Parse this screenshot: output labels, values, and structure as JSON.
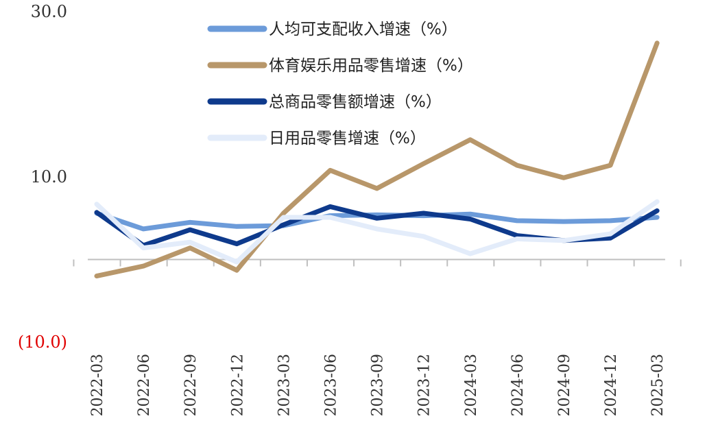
{
  "chart_data": {
    "type": "line",
    "categories": [
      "2022-03",
      "2022-06",
      "2022-09",
      "2022-12",
      "2023-03",
      "2023-06",
      "2023-09",
      "2023-12",
      "2024-03",
      "2024-06",
      "2024-09",
      "2024-12",
      "2025-03"
    ],
    "ylim": [
      -10,
      30
    ],
    "yticks": [
      {
        "value": 30,
        "label": "30.0"
      },
      {
        "value": 10,
        "label": "10.0"
      },
      {
        "value": -10,
        "label": "(10.0)"
      }
    ],
    "negative_label_color": "#e00000",
    "grid": false,
    "legend_position": "top-center",
    "series": [
      {
        "name": "人均可支配收入增速（%）",
        "color": "#6c9bd9",
        "values": [
          5.6,
          3.7,
          4.5,
          4.0,
          4.1,
          5.3,
          5.4,
          5.3,
          5.5,
          4.7,
          4.6,
          4.7,
          5.1
        ]
      },
      {
        "name": "体育娱乐用品零售增速（%）",
        "color": "#b8976a",
        "values": [
          -2.0,
          -0.8,
          1.4,
          -1.3,
          5.6,
          10.8,
          8.6,
          11.6,
          14.5,
          11.4,
          9.9,
          11.4,
          26.2
        ]
      },
      {
        "name": "总商品零售额增速（%）",
        "color": "#0e3a8c",
        "values": [
          5.7,
          1.7,
          3.6,
          1.9,
          4.2,
          6.4,
          5.0,
          5.6,
          4.9,
          2.9,
          2.3,
          2.6,
          5.9
        ]
      },
      {
        "name": "日用品零售增速（%）",
        "color": "#e3ecfa",
        "values": [
          6.7,
          1.4,
          2.1,
          -0.3,
          5.1,
          5.1,
          3.7,
          2.8,
          0.7,
          2.5,
          2.3,
          3.1,
          7.0
        ]
      }
    ]
  }
}
